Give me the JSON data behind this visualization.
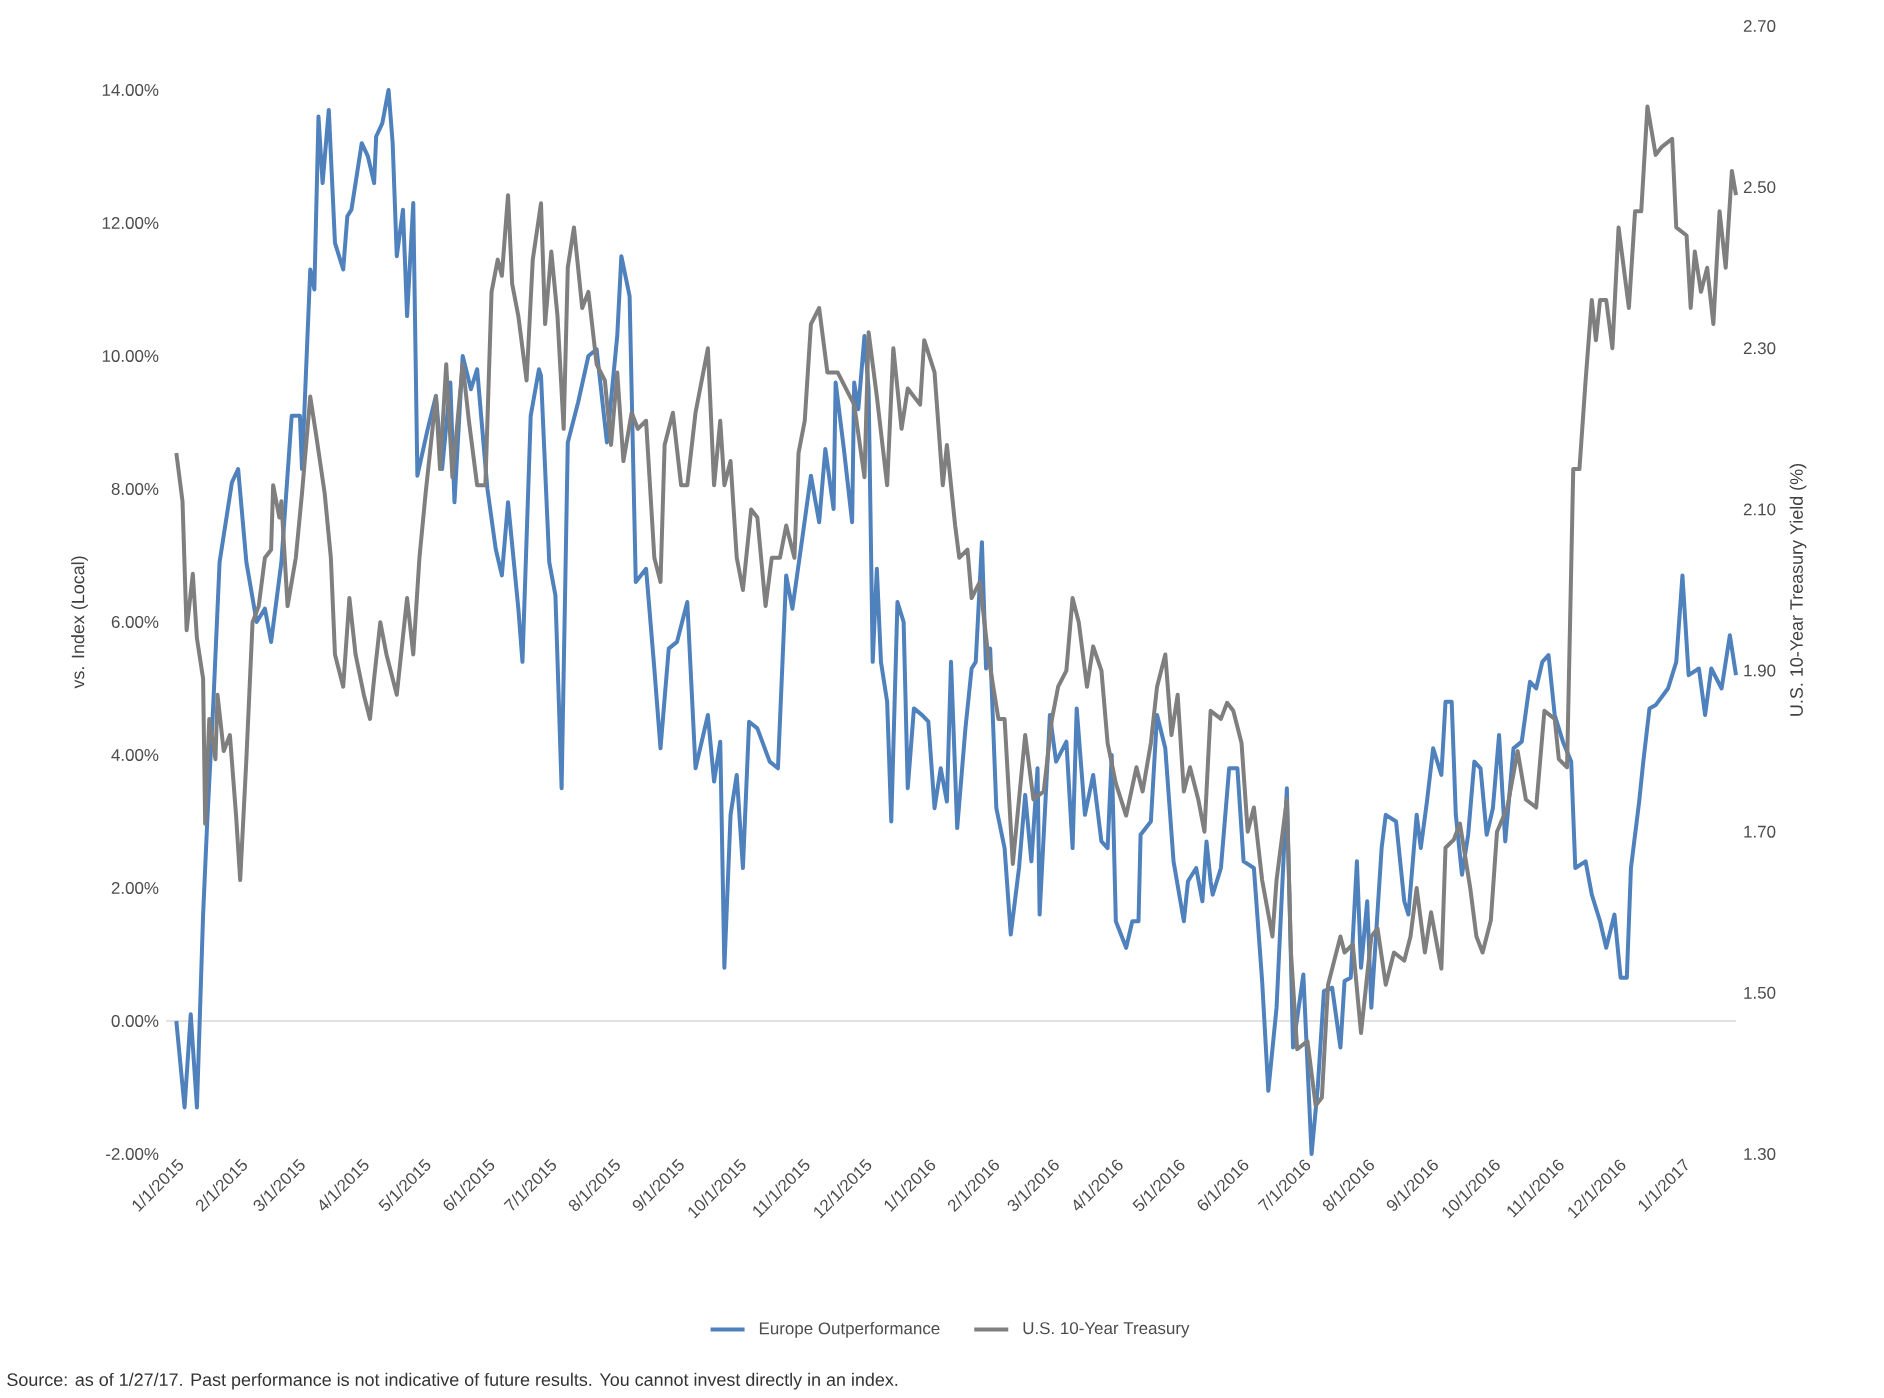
{
  "chart_data": {
    "type": "line",
    "xlabel": null,
    "ylabel": "vs. Index (Local)",
    "y2label": "U.S. 10-Year Treasury Yield (%)",
    "annotations": [
      "Source: as of 1/27/17. Past performance is not indicative of future results. You cannot invest directly in an index."
    ],
    "xlim": [
      "2014-12-27",
      "2017-01-27"
    ],
    "xticks": [
      {
        "value": "2015-01-01",
        "label": "1/1/2015"
      },
      {
        "value": "2015-02-01",
        "label": "2/1/2015"
      },
      {
        "value": "2015-03-01",
        "label": "3/1/2015"
      },
      {
        "value": "2015-04-01",
        "label": "4/1/2015"
      },
      {
        "value": "2015-05-01",
        "label": "5/1/2015"
      },
      {
        "value": "2015-06-01",
        "label": "6/1/2015"
      },
      {
        "value": "2015-07-01",
        "label": "7/1/2015"
      },
      {
        "value": "2015-08-01",
        "label": "8/1/2015"
      },
      {
        "value": "2015-09-01",
        "label": "9/1/2015"
      },
      {
        "value": "2015-10-01",
        "label": "10/1/2015"
      },
      {
        "value": "2015-11-01",
        "label": "11/1/2015"
      },
      {
        "value": "2015-12-01",
        "label": "12/1/2015"
      },
      {
        "value": "2016-01-01",
        "label": "1/1/2016"
      },
      {
        "value": "2016-02-01",
        "label": "2/1/2016"
      },
      {
        "value": "2016-03-01",
        "label": "3/1/2016"
      },
      {
        "value": "2016-04-01",
        "label": "4/1/2016"
      },
      {
        "value": "2016-05-01",
        "label": "5/1/2016"
      },
      {
        "value": "2016-06-01",
        "label": "6/1/2016"
      },
      {
        "value": "2016-07-01",
        "label": "7/1/2016"
      },
      {
        "value": "2016-08-01",
        "label": "8/1/2016"
      },
      {
        "value": "2016-09-01",
        "label": "9/1/2016"
      },
      {
        "value": "2016-10-01",
        "label": "10/1/2016"
      },
      {
        "value": "2016-11-01",
        "label": "11/1/2016"
      },
      {
        "value": "2016-12-01",
        "label": "12/1/2016"
      },
      {
        "value": "2017-01-01",
        "label": "1/1/2017"
      }
    ],
    "ylim": [
      -2,
      14
    ],
    "yticks": [
      {
        "value": -2,
        "label": "-2.00%"
      },
      {
        "value": 0,
        "label": "0.00%"
      },
      {
        "value": 2,
        "label": "2.00%"
      },
      {
        "value": 4,
        "label": "4.00%"
      },
      {
        "value": 6,
        "label": "6.00%"
      },
      {
        "value": 8,
        "label": "8.00%"
      },
      {
        "value": 10,
        "label": "10.00%"
      },
      {
        "value": 12,
        "label": "12.00%"
      },
      {
        "value": 14,
        "label": "14.00%"
      }
    ],
    "y2lim": [
      1.3,
      2.7
    ],
    "y2ticks": [
      {
        "value": 1.3,
        "label": "1.30"
      },
      {
        "value": 1.5,
        "label": "1.50"
      },
      {
        "value": 1.7,
        "label": "1.70"
      },
      {
        "value": 1.9,
        "label": "1.90"
      },
      {
        "value": 2.1,
        "label": "2.10"
      },
      {
        "value": 2.3,
        "label": "2.30"
      },
      {
        "value": 2.5,
        "label": "2.50"
      },
      {
        "value": 2.7,
        "label": "2.70"
      }
    ],
    "ref_lines": [
      {
        "axis": "y",
        "value": 0,
        "color": "#d9d9d9"
      }
    ],
    "legend": "bottom",
    "series": [
      {
        "name": "Europe Outperformance",
        "color": "#4f81bd",
        "axis": "y",
        "x": [
          "2015-01-01",
          "2015-01-05",
          "2015-01-08",
          "2015-01-11",
          "2015-01-14",
          "2015-01-16",
          "2015-01-19",
          "2015-01-22",
          "2015-01-28",
          "2015-01-31",
          "2015-02-04",
          "2015-02-09",
          "2015-02-13",
          "2015-02-16",
          "2015-02-21",
          "2015-02-26",
          "2015-03-02",
          "2015-03-03",
          "2015-03-07",
          "2015-03-09",
          "2015-03-11",
          "2015-03-13",
          "2015-03-16",
          "2015-03-19",
          "2015-03-23",
          "2015-03-25",
          "2015-03-27",
          "2015-04-01",
          "2015-04-04",
          "2015-04-07",
          "2015-04-08",
          "2015-04-11",
          "2015-04-14",
          "2015-04-16",
          "2015-04-18",
          "2015-04-21",
          "2015-04-23",
          "2015-04-26",
          "2015-04-28",
          "2015-05-03",
          "2015-05-07",
          "2015-05-10",
          "2015-05-14",
          "2015-05-16",
          "2015-05-20",
          "2015-05-24",
          "2015-05-27",
          "2015-06-01",
          "2015-06-05",
          "2015-06-08",
          "2015-06-11",
          "2015-06-16",
          "2015-06-18",
          "2015-06-22",
          "2015-06-26",
          "2015-06-27",
          "2015-07-01",
          "2015-07-04",
          "2015-07-07",
          "2015-07-10",
          "2015-07-15",
          "2015-07-20",
          "2015-07-24",
          "2015-07-29",
          "2015-08-03",
          "2015-08-05",
          "2015-08-09",
          "2015-08-12",
          "2015-08-17",
          "2015-08-21",
          "2015-08-24",
          "2015-08-28",
          "2015-09-01",
          "2015-09-06",
          "2015-09-10",
          "2015-09-16",
          "2015-09-19",
          "2015-09-22",
          "2015-09-24",
          "2015-09-27",
          "2015-09-30",
          "2015-10-03",
          "2015-10-06",
          "2015-10-10",
          "2015-10-16",
          "2015-10-20",
          "2015-10-24",
          "2015-10-27",
          "2015-11-01",
          "2015-11-05",
          "2015-11-09",
          "2015-11-12",
          "2015-11-16",
          "2015-11-17",
          "2015-11-21",
          "2015-11-25",
          "2015-11-26",
          "2015-11-28",
          "2015-12-01",
          "2015-12-03",
          "2015-12-05",
          "2015-12-07",
          "2015-12-09",
          "2015-12-12",
          "2015-12-14",
          "2015-12-17",
          "2015-12-20",
          "2015-12-22",
          "2015-12-25",
          "2015-12-29",
          "2016-01-01",
          "2016-01-04",
          "2016-01-07",
          "2016-01-10",
          "2016-01-12",
          "2016-01-15",
          "2016-01-19",
          "2016-01-22",
          "2016-01-24",
          "2016-01-27",
          "2016-01-29",
          "2016-01-31",
          "2016-02-03",
          "2016-02-07",
          "2016-02-10",
          "2016-02-14",
          "2016-02-17",
          "2016-02-20",
          "2016-02-23",
          "2016-02-24",
          "2016-02-29",
          "2016-03-03",
          "2016-03-08",
          "2016-03-11",
          "2016-03-13",
          "2016-03-17",
          "2016-03-21",
          "2016-03-25",
          "2016-03-28",
          "2016-03-30",
          "2016-04-01",
          "2016-04-06",
          "2016-04-09",
          "2016-04-12",
          "2016-04-13",
          "2016-04-18",
          "2016-04-21",
          "2016-04-25",
          "2016-04-29",
          "2016-05-04",
          "2016-05-06",
          "2016-05-10",
          "2016-05-13",
          "2016-05-15",
          "2016-05-17",
          "2016-05-18",
          "2016-05-22",
          "2016-05-26",
          "2016-05-30",
          "2016-06-02",
          "2016-06-07",
          "2016-06-11",
          "2016-06-14",
          "2016-06-18",
          "2016-06-23",
          "2016-06-26",
          "2016-07-01",
          "2016-07-05",
          "2016-07-08",
          "2016-07-11",
          "2016-07-15",
          "2016-07-19",
          "2016-07-21",
          "2016-07-24",
          "2016-07-27",
          "2016-07-29",
          "2016-08-01",
          "2016-08-03",
          "2016-08-08",
          "2016-08-10",
          "2016-08-15",
          "2016-08-19",
          "2016-08-21",
          "2016-08-25",
          "2016-08-27",
          "2016-08-30",
          "2016-09-02",
          "2016-09-06",
          "2016-09-08",
          "2016-09-11",
          "2016-09-13",
          "2016-09-16",
          "2016-09-19",
          "2016-09-22",
          "2016-09-25",
          "2016-09-28",
          "2016-10-01",
          "2016-10-04",
          "2016-10-07",
          "2016-10-11",
          "2016-10-15",
          "2016-10-19",
          "2016-10-22",
          "2016-10-25",
          "2016-10-28",
          "2016-10-31",
          "2016-11-04",
          "2016-11-08",
          "2016-11-10",
          "2016-11-15",
          "2016-11-18",
          "2016-11-22",
          "2016-11-25",
          "2016-11-29",
          "2016-12-02",
          "2016-12-05",
          "2016-12-07",
          "2016-12-11",
          "2016-12-13",
          "2016-12-16",
          "2016-12-19",
          "2016-12-25",
          "2016-12-29",
          "2017-01-01",
          "2017-01-04",
          "2017-01-09",
          "2017-01-12",
          "2017-01-15",
          "2017-01-20",
          "2017-01-24",
          "2017-01-27"
        ],
        "values": [
          0.0,
          -1.3,
          0.1,
          -1.3,
          1.6,
          3.0,
          4.8,
          6.9,
          8.1,
          8.3,
          6.9,
          6.0,
          6.2,
          5.7,
          6.9,
          9.1,
          9.1,
          8.3,
          11.3,
          11.0,
          13.6,
          12.6,
          13.7,
          11.7,
          11.3,
          12.1,
          12.2,
          13.2,
          13.0,
          12.6,
          13.3,
          13.5,
          14.0,
          13.2,
          11.5,
          12.2,
          10.6,
          12.3,
          8.2,
          8.9,
          9.4,
          8.3,
          9.6,
          7.8,
          10.0,
          9.5,
          9.8,
          8.0,
          7.1,
          6.7,
          7.8,
          6.2,
          5.4,
          9.1,
          9.8,
          9.7,
          6.9,
          6.4,
          3.5,
          8.7,
          9.3,
          10.0,
          10.1,
          8.7,
          10.3,
          11.5,
          10.9,
          6.6,
          6.8,
          5.3,
          4.1,
          5.6,
          5.7,
          6.3,
          3.8,
          4.6,
          3.6,
          4.2,
          0.8,
          3.1,
          3.7,
          2.3,
          4.5,
          4.4,
          3.9,
          3.8,
          6.7,
          6.2,
          7.3,
          8.2,
          7.5,
          8.6,
          7.7,
          9.6,
          8.6,
          7.5,
          9.6,
          9.2,
          10.3,
          9.5,
          5.4,
          6.8,
          5.4,
          4.8,
          3.0,
          6.3,
          6.0,
          3.5,
          4.7,
          4.6,
          4.5,
          3.2,
          3.8,
          3.3,
          5.4,
          2.9,
          4.4,
          5.3,
          5.4,
          7.2,
          5.3,
          5.6,
          3.2,
          2.6,
          1.3,
          2.3,
          3.4,
          2.4,
          3.8,
          1.6,
          4.6,
          3.9,
          4.2,
          2.6,
          4.7,
          3.1,
          3.7,
          2.7,
          2.6,
          4.0,
          1.5,
          1.1,
          1.5,
          1.5,
          2.8,
          3.0,
          4.6,
          4.1,
          2.4,
          1.5,
          2.1,
          2.3,
          1.8,
          2.7,
          2.1,
          1.9,
          2.3,
          3.8,
          3.8,
          2.4,
          2.3,
          0.6,
          -1.05,
          0.2,
          3.5,
          -0.4,
          0.7,
          -2.0,
          -1.0,
          0.45,
          0.5,
          -0.4,
          0.6,
          0.65,
          2.4,
          0.8,
          1.8,
          0.2,
          2.6,
          3.1,
          3.0,
          1.8,
          1.6,
          3.1,
          2.6,
          3.3,
          4.1,
          3.7,
          4.8,
          4.8,
          3.1,
          2.2,
          2.8,
          3.9,
          3.8,
          2.8,
          3.2,
          4.3,
          2.7,
          4.1,
          4.2,
          5.1,
          5.0,
          5.4,
          5.5,
          4.6,
          4.2,
          3.9,
          2.3,
          2.4,
          1.9,
          1.5,
          1.1,
          1.6,
          0.65,
          0.65,
          2.3,
          3.3,
          3.9,
          4.7,
          4.75,
          5.0,
          5.4,
          6.7,
          5.2,
          5.3,
          4.6,
          5.3,
          5.0,
          5.8,
          5.2
        ]
      },
      {
        "name": "U.S. 10-Year Treasury",
        "color": "#7f7f7f",
        "axis": "y2",
        "x": [
          "2015-01-01",
          "2015-01-04",
          "2015-01-06",
          "2015-01-09",
          "2015-01-11",
          "2015-01-14",
          "2015-01-15",
          "2015-01-17",
          "2015-01-20",
          "2015-01-21",
          "2015-01-24",
          "2015-01-27",
          "2015-01-30",
          "2015-02-01",
          "2015-02-04",
          "2015-02-07",
          "2015-02-10",
          "2015-02-13",
          "2015-02-16",
          "2015-02-17",
          "2015-02-20",
          "2015-02-21",
          "2015-02-24",
          "2015-02-28",
          "2015-03-03",
          "2015-03-07",
          "2015-03-10",
          "2015-03-14",
          "2015-03-17",
          "2015-03-19",
          "2015-03-23",
          "2015-03-26",
          "2015-03-29",
          "2015-04-02",
          "2015-04-05",
          "2015-04-07",
          "2015-04-10",
          "2015-04-13",
          "2015-04-18",
          "2015-04-23",
          "2015-04-26",
          "2015-04-29",
          "2015-05-02",
          "2015-05-07",
          "2015-05-09",
          "2015-05-12",
          "2015-05-15",
          "2015-05-20",
          "2015-05-23",
          "2015-05-27",
          "2015-05-31",
          "2015-06-03",
          "2015-06-06",
          "2015-06-08",
          "2015-06-11",
          "2015-06-13",
          "2015-06-16",
          "2015-06-20",
          "2015-06-23",
          "2015-06-27",
          "2015-06-29",
          "2015-07-02",
          "2015-07-05",
          "2015-07-08",
          "2015-07-10",
          "2015-07-13",
          "2015-07-17",
          "2015-07-20",
          "2015-07-24",
          "2015-07-28",
          "2015-07-31",
          "2015-08-03",
          "2015-08-06",
          "2015-08-10",
          "2015-08-13",
          "2015-08-17",
          "2015-08-21",
          "2015-08-24",
          "2015-08-26",
          "2015-08-30",
          "2015-09-03",
          "2015-09-06",
          "2015-09-10",
          "2015-09-16",
          "2015-09-19",
          "2015-09-22",
          "2015-09-24",
          "2015-09-27",
          "2015-09-30",
          "2015-10-03",
          "2015-10-07",
          "2015-10-10",
          "2015-10-14",
          "2015-10-17",
          "2015-10-21",
          "2015-10-24",
          "2015-10-28",
          "2015-10-30",
          "2015-11-02",
          "2015-11-05",
          "2015-11-09",
          "2015-11-13",
          "2015-11-18",
          "2015-11-22",
          "2015-11-26",
          "2015-12-01",
          "2015-12-03",
          "2015-12-07",
          "2015-12-12",
          "2015-12-15",
          "2015-12-19",
          "2015-12-22",
          "2015-12-28",
          "2015-12-30",
          "2016-01-04",
          "2016-01-08",
          "2016-01-10",
          "2016-01-14",
          "2016-01-16",
          "2016-01-20",
          "2016-01-22",
          "2016-01-26",
          "2016-01-30",
          "2016-02-04",
          "2016-02-07",
          "2016-02-11",
          "2016-02-14",
          "2016-02-17",
          "2016-02-21",
          "2016-02-26",
          "2016-03-01",
          "2016-03-04",
          "2016-03-08",
          "2016-03-11",
          "2016-03-14",
          "2016-03-18",
          "2016-03-21",
          "2016-03-25",
          "2016-03-28",
          "2016-04-01",
          "2016-04-06",
          "2016-04-11",
          "2016-04-14",
          "2016-04-18",
          "2016-04-21",
          "2016-04-25",
          "2016-04-28",
          "2016-05-01",
          "2016-05-04",
          "2016-05-07",
          "2016-05-11",
          "2016-05-14",
          "2016-05-17",
          "2016-05-22",
          "2016-05-25",
          "2016-05-28",
          "2016-06-01",
          "2016-06-04",
          "2016-06-07",
          "2016-06-11",
          "2016-06-16",
          "2016-06-18",
          "2016-06-23",
          "2016-06-25",
          "2016-06-28",
          "2016-07-03",
          "2016-07-07",
          "2016-07-10",
          "2016-07-13",
          "2016-07-17",
          "2016-07-19",
          "2016-07-21",
          "2016-07-25",
          "2016-07-29",
          "2016-08-03",
          "2016-08-06",
          "2016-08-10",
          "2016-08-14",
          "2016-08-19",
          "2016-08-22",
          "2016-08-25",
          "2016-08-29",
          "2016-09-01",
          "2016-09-06",
          "2016-09-08",
          "2016-09-12",
          "2016-09-15",
          "2016-09-20",
          "2016-09-23",
          "2016-09-26",
          "2016-09-30",
          "2016-10-03",
          "2016-10-08",
          "2016-10-13",
          "2016-10-17",
          "2016-10-22",
          "2016-10-26",
          "2016-10-31",
          "2016-11-02",
          "2016-11-06",
          "2016-11-09",
          "2016-11-12",
          "2016-11-15",
          "2016-11-18",
          "2016-11-20",
          "2016-11-22",
          "2016-11-25",
          "2016-11-28",
          "2016-12-01",
          "2016-12-04",
          "2016-12-06",
          "2016-12-09",
          "2016-12-12",
          "2016-12-15",
          "2016-12-19",
          "2016-12-22",
          "2016-12-27",
          "2016-12-29",
          "2017-01-03",
          "2017-01-05",
          "2017-01-07",
          "2017-01-10",
          "2017-01-13",
          "2017-01-16",
          "2017-01-19",
          "2017-01-22",
          "2017-01-25",
          "2017-01-27"
        ],
        "values": [
          2.17,
          2.11,
          1.95,
          2.02,
          1.94,
          1.89,
          1.71,
          1.84,
          1.79,
          1.87,
          1.8,
          1.82,
          1.72,
          1.64,
          1.79,
          1.96,
          1.98,
          2.04,
          2.05,
          2.13,
          2.09,
          2.11,
          1.98,
          2.04,
          2.12,
          2.24,
          2.19,
          2.12,
          2.04,
          1.92,
          1.88,
          1.99,
          1.92,
          1.87,
          1.84,
          1.89,
          1.96,
          1.92,
          1.87,
          1.99,
          1.92,
          2.04,
          2.12,
          2.24,
          2.15,
          2.28,
          2.14,
          2.28,
          2.21,
          2.13,
          2.13,
          2.37,
          2.41,
          2.39,
          2.49,
          2.38,
          2.34,
          2.26,
          2.41,
          2.48,
          2.33,
          2.42,
          2.34,
          2.2,
          2.4,
          2.45,
          2.35,
          2.37,
          2.28,
          2.26,
          2.18,
          2.27,
          2.16,
          2.22,
          2.2,
          2.21,
          2.04,
          2.01,
          2.18,
          2.22,
          2.13,
          2.13,
          2.22,
          2.3,
          2.13,
          2.21,
          2.13,
          2.16,
          2.04,
          2.0,
          2.1,
          2.09,
          1.98,
          2.04,
          2.04,
          2.08,
          2.04,
          2.17,
          2.21,
          2.33,
          2.35,
          2.27,
          2.27,
          2.25,
          2.23,
          2.14,
          2.32,
          2.24,
          2.13,
          2.3,
          2.2,
          2.25,
          2.23,
          2.31,
          2.27,
          2.13,
          2.18,
          2.08,
          2.04,
          2.05,
          1.99,
          2.01,
          1.92,
          1.84,
          1.84,
          1.66,
          1.74,
          1.82,
          1.74,
          1.75,
          1.84,
          1.88,
          1.9,
          1.99,
          1.96,
          1.88,
          1.93,
          1.9,
          1.81,
          1.76,
          1.72,
          1.78,
          1.75,
          1.81,
          1.88,
          1.92,
          1.82,
          1.87,
          1.75,
          1.78,
          1.74,
          1.7,
          1.85,
          1.84,
          1.86,
          1.85,
          1.81,
          1.7,
          1.73,
          1.64,
          1.57,
          1.64,
          1.74,
          1.55,
          1.43,
          1.44,
          1.36,
          1.37,
          1.51,
          1.55,
          1.57,
          1.55,
          1.56,
          1.45,
          1.57,
          1.58,
          1.51,
          1.55,
          1.54,
          1.57,
          1.63,
          1.55,
          1.6,
          1.53,
          1.68,
          1.69,
          1.71,
          1.63,
          1.57,
          1.55,
          1.59,
          1.7,
          1.73,
          1.8,
          1.74,
          1.73,
          1.85,
          1.84,
          1.79,
          1.78,
          2.15,
          2.15,
          2.26,
          2.36,
          2.31,
          2.36,
          2.36,
          2.3,
          2.45,
          2.39,
          2.35,
          2.47,
          2.47,
          2.6,
          2.54,
          2.55,
          2.56,
          2.45,
          2.44,
          2.35,
          2.42,
          2.37,
          2.4,
          2.33,
          2.47,
          2.4,
          2.52,
          2.49
        ]
      }
    ]
  }
}
